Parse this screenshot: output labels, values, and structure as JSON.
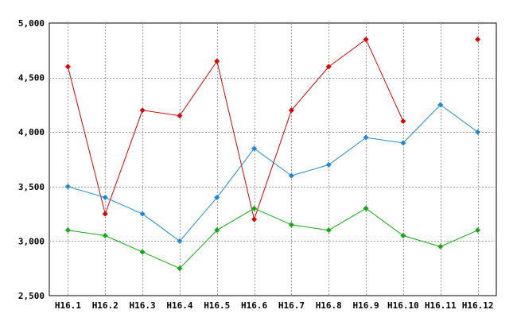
{
  "chart_data": {
    "type": "line",
    "title": "",
    "xlabel": "",
    "ylabel": "",
    "categories": [
      "H16.1",
      "H16.2",
      "H16.3",
      "H16.4",
      "H16.5",
      "H16.6",
      "H16.7",
      "H16.8",
      "H16.9",
      "H16.10",
      "H16.11",
      "H16.12"
    ],
    "ylim": [
      2500,
      5000
    ],
    "y_ticks": [
      2500,
      3000,
      3500,
      4000,
      4500,
      5000
    ],
    "y_tick_labels": [
      "2,500",
      "3,000",
      "3,500",
      "4,000",
      "4,500",
      "5,000"
    ],
    "grid": true,
    "legend": "none",
    "series": [
      {
        "color": "#dd0000",
        "values": [
          4600,
          3250,
          4200,
          4150,
          4650,
          3200,
          4200,
          4600,
          4850,
          4100,
          null,
          4850
        ]
      },
      {
        "color": "#1e8ad6",
        "values": [
          3500,
          3400,
          3250,
          3000,
          3400,
          3850,
          3600,
          3700,
          3950,
          3900,
          4250,
          4000
        ]
      },
      {
        "color": "#11aa11",
        "values": [
          3100,
          3050,
          2900,
          2750,
          3100,
          3300,
          3150,
          3100,
          3300,
          3050,
          2950,
          3100
        ]
      }
    ]
  }
}
